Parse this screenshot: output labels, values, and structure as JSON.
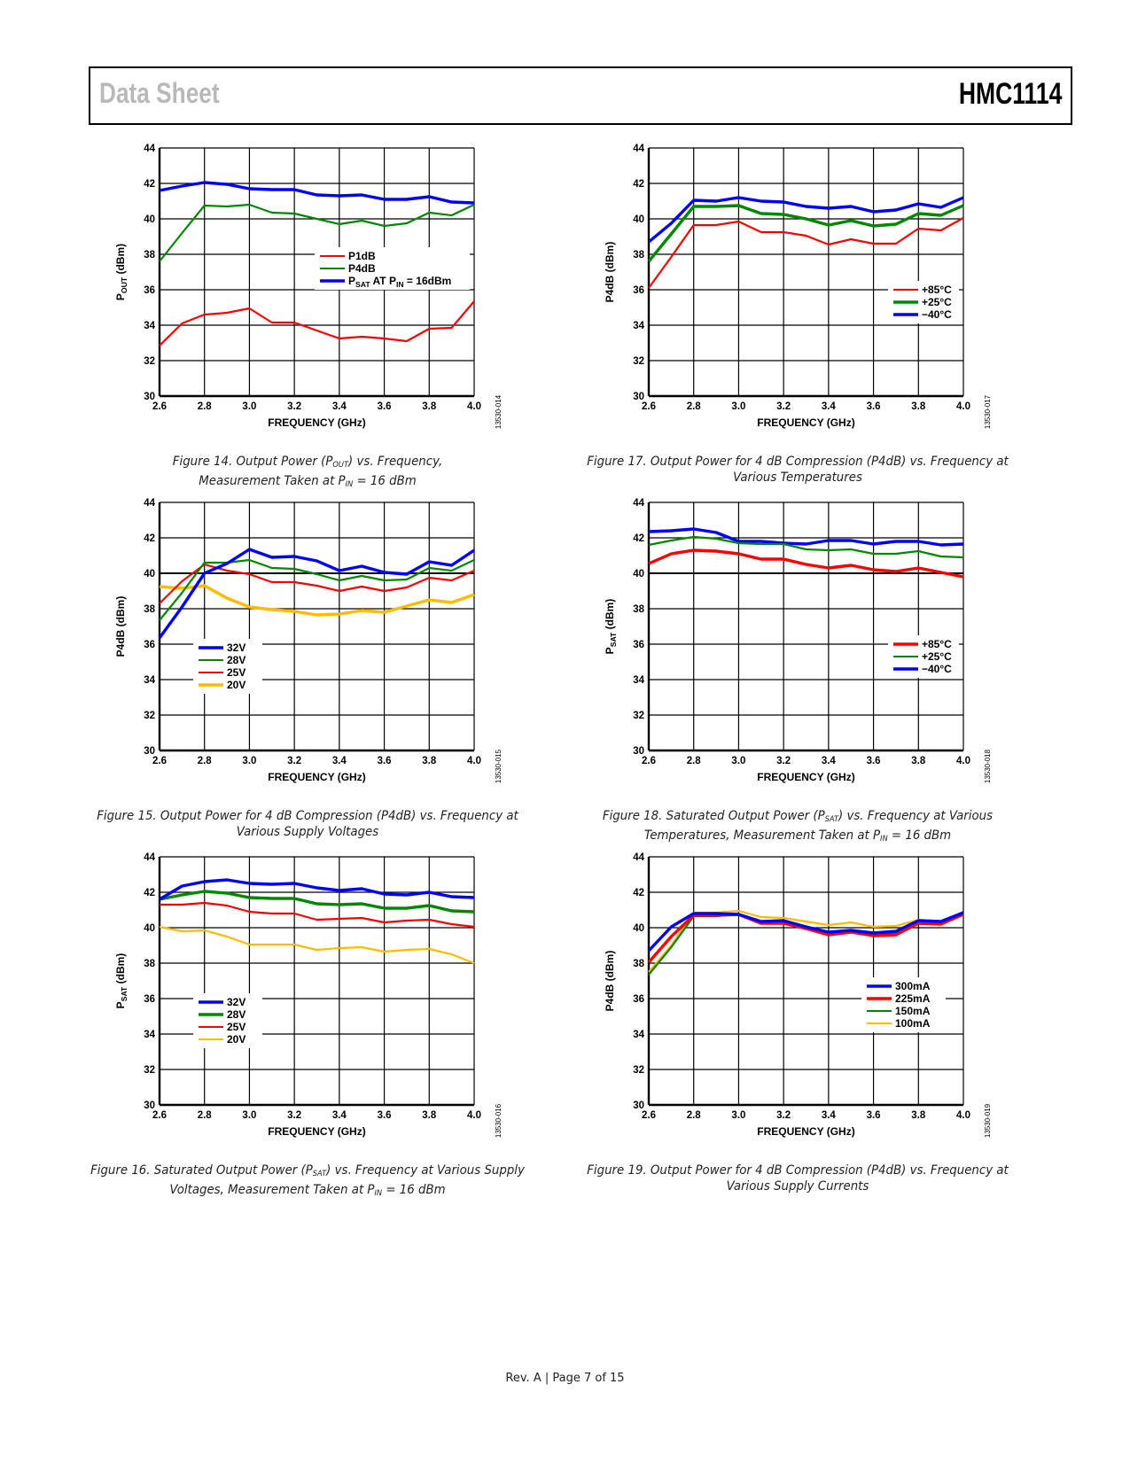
{
  "header": {
    "left": "Data Sheet",
    "right": "HMC1114"
  },
  "footer": "Rev. A | Page 7 of 15",
  "colors": {
    "red": "#ff0000",
    "green": "#008800",
    "blue": "#0000ff",
    "yellow": "#ffbb00"
  },
  "chart_data": [
    {
      "id": "fig14",
      "type": "line",
      "title": "",
      "caption_lines": [
        "Figure 14. Output Power (P{OUT}) vs. Frequency,",
        "Measurement Taken at P{IN} = 16 dBm"
      ],
      "figure_id": "13530-014",
      "xlabel": "FREQUENCY (GHz)",
      "ylabel": "P{OUT} (dBm)",
      "xlim": [
        2.6,
        4.0
      ],
      "ylim": [
        30,
        44
      ],
      "xticks": [
        "2.6",
        "2.8",
        "3.0",
        "3.2",
        "3.4",
        "3.6",
        "3.8",
        "4.0"
      ],
      "yticks": [
        "30",
        "32",
        "34",
        "36",
        "38",
        "40",
        "42",
        "44"
      ],
      "grid": true,
      "legend_position": "center-right",
      "x": [
        2.6,
        2.7,
        2.8,
        2.9,
        3.0,
        3.1,
        3.2,
        3.3,
        3.4,
        3.5,
        3.6,
        3.7,
        3.8,
        3.9,
        4.0
      ],
      "series": [
        {
          "name": "P1dB",
          "color": "red",
          "weight": "thin",
          "values": [
            32.85,
            34.1,
            34.6,
            34.7,
            34.95,
            34.15,
            34.15,
            33.7,
            33.25,
            33.35,
            33.25,
            33.1,
            33.8,
            33.85,
            35.35
          ]
        },
        {
          "name": "P4dB",
          "color": "green",
          "weight": "thin",
          "values": [
            37.6,
            39.2,
            40.75,
            40.7,
            40.8,
            40.35,
            40.3,
            40.0,
            39.7,
            39.9,
            39.6,
            39.75,
            40.35,
            40.2,
            40.8
          ]
        },
        {
          "name": "P{SAT} AT P{IN} = 16dBm",
          "color": "blue",
          "weight": "thick",
          "values": [
            41.6,
            41.85,
            42.05,
            41.95,
            41.7,
            41.65,
            41.65,
            41.35,
            41.3,
            41.35,
            41.1,
            41.1,
            41.25,
            40.95,
            40.9
          ]
        }
      ]
    },
    {
      "id": "fig17",
      "type": "line",
      "title": "",
      "caption_lines": [
        "Figure 17. Output Power for 4 dB Compression (P4dB) vs. Frequency at",
        "Various Temperatures"
      ],
      "figure_id": "13530-017",
      "xlabel": "FREQUENCY (GHz)",
      "ylabel": "P4dB (dBm)",
      "xlim": [
        2.6,
        4.0
      ],
      "ylim": [
        30,
        44
      ],
      "xticks": [
        "2.6",
        "2.8",
        "3.0",
        "3.2",
        "3.4",
        "3.6",
        "3.8",
        "4.0"
      ],
      "yticks": [
        "30",
        "32",
        "34",
        "36",
        "38",
        "40",
        "42",
        "44"
      ],
      "grid": true,
      "legend_position": "center-right",
      "x": [
        2.6,
        2.7,
        2.8,
        2.9,
        3.0,
        3.1,
        3.2,
        3.3,
        3.4,
        3.5,
        3.6,
        3.7,
        3.8,
        3.9,
        4.0
      ],
      "series": [
        {
          "name": "+85°C",
          "color": "red",
          "weight": "thin",
          "values": [
            36.1,
            37.85,
            39.65,
            39.65,
            39.85,
            39.25,
            39.25,
            39.05,
            38.55,
            38.85,
            38.6,
            38.6,
            39.45,
            39.35,
            40.05
          ]
        },
        {
          "name": "+25°C",
          "color": "green",
          "weight": "thick",
          "values": [
            37.6,
            39.15,
            40.7,
            40.7,
            40.75,
            40.3,
            40.25,
            40.0,
            39.65,
            39.9,
            39.6,
            39.7,
            40.3,
            40.2,
            40.75
          ]
        },
        {
          "name": "−40°C",
          "color": "blue",
          "weight": "thick",
          "values": [
            38.7,
            39.75,
            41.05,
            41.0,
            41.2,
            41.0,
            40.95,
            40.7,
            40.6,
            40.7,
            40.4,
            40.5,
            40.85,
            40.65,
            41.2
          ]
        }
      ]
    },
    {
      "id": "fig15",
      "type": "line",
      "title": "",
      "caption_lines": [
        "Figure 15. Output Power for 4 dB Compression (P4dB) vs. Frequency at",
        "Various Supply Voltages"
      ],
      "figure_id": "13530-015",
      "xlabel": "FREQUENCY (GHz)",
      "ylabel": "P4dB (dBm)",
      "xlim": [
        2.6,
        4.0
      ],
      "ylim": [
        30,
        44
      ],
      "xticks": [
        "2.6",
        "2.8",
        "3.0",
        "3.2",
        "3.4",
        "3.6",
        "3.8",
        "4.0"
      ],
      "yticks": [
        "30",
        "32",
        "34",
        "36",
        "38",
        "40",
        "42",
        "44"
      ],
      "grid": true,
      "legend_position": "lower-left",
      "x": [
        2.6,
        2.7,
        2.8,
        2.9,
        3.0,
        3.1,
        3.2,
        3.3,
        3.4,
        3.5,
        3.6,
        3.7,
        3.8,
        3.9,
        4.0
      ],
      "series": [
        {
          "name": "32V",
          "color": "blue",
          "weight": "thick",
          "values": [
            36.35,
            38.1,
            40.0,
            40.55,
            41.35,
            40.9,
            40.95,
            40.7,
            40.15,
            40.4,
            40.05,
            39.95,
            40.65,
            40.45,
            41.3
          ]
        },
        {
          "name": "28V",
          "color": "green",
          "weight": "thin",
          "values": [
            37.35,
            38.9,
            40.6,
            40.6,
            40.75,
            40.3,
            40.25,
            39.95,
            39.6,
            39.85,
            39.6,
            39.65,
            40.3,
            40.15,
            40.75
          ]
        },
        {
          "name": "25V",
          "color": "red",
          "weight": "thin",
          "values": [
            38.3,
            39.55,
            40.5,
            40.15,
            39.95,
            39.5,
            39.5,
            39.3,
            39.0,
            39.25,
            39.0,
            39.2,
            39.75,
            39.6,
            40.15
          ]
        },
        {
          "name": "20V",
          "color": "yellow",
          "weight": "thick",
          "values": [
            39.25,
            39.15,
            39.3,
            38.6,
            38.1,
            37.95,
            37.85,
            37.65,
            37.7,
            37.9,
            37.8,
            38.15,
            38.5,
            38.35,
            38.8
          ]
        }
      ]
    },
    {
      "id": "fig18",
      "type": "line",
      "title": "",
      "caption_lines": [
        "Figure 18. Saturated Output Power (P{SAT}) vs. Frequency at Various",
        "Temperatures, Measurement Taken at P{IN} = 16 dBm"
      ],
      "figure_id": "13530-018",
      "xlabel": "FREQUENCY (GHz)",
      "ylabel": "P{SAT} (dBm)",
      "xlim": [
        2.6,
        4.0
      ],
      "ylim": [
        30,
        44
      ],
      "xticks": [
        "2.6",
        "2.8",
        "3.0",
        "3.2",
        "3.4",
        "3.6",
        "3.8",
        "4.0"
      ],
      "yticks": [
        "30",
        "32",
        "34",
        "36",
        "38",
        "40",
        "42",
        "44"
      ],
      "grid": true,
      "legend_position": "center-right",
      "x": [
        2.6,
        2.7,
        2.8,
        2.9,
        3.0,
        3.1,
        3.2,
        3.3,
        3.4,
        3.5,
        3.6,
        3.7,
        3.8,
        3.9,
        4.0
      ],
      "series": [
        {
          "name": "+85°C",
          "color": "red",
          "weight": "thick",
          "values": [
            40.55,
            41.1,
            41.3,
            41.25,
            41.1,
            40.8,
            40.8,
            40.5,
            40.3,
            40.45,
            40.2,
            40.1,
            40.3,
            40.05,
            39.8
          ]
        },
        {
          "name": "+25°C",
          "color": "green",
          "weight": "thin",
          "values": [
            41.6,
            41.85,
            42.05,
            41.95,
            41.7,
            41.65,
            41.65,
            41.35,
            41.3,
            41.35,
            41.1,
            41.1,
            41.25,
            40.95,
            40.9
          ]
        },
        {
          "name": "−40°C",
          "color": "blue",
          "weight": "thick",
          "values": [
            42.35,
            42.4,
            42.5,
            42.3,
            41.8,
            41.8,
            41.7,
            41.65,
            41.85,
            41.85,
            41.65,
            41.8,
            41.8,
            41.6,
            41.65
          ]
        }
      ]
    },
    {
      "id": "fig16",
      "type": "line",
      "title": "",
      "caption_lines": [
        "Figure 16. Saturated Output Power (P{SAT}) vs. Frequency at Various Supply",
        "Voltages, Measurement Taken at P{IN} = 16 dBm"
      ],
      "figure_id": "13530-016",
      "xlabel": "FREQUENCY (GHz)",
      "ylabel": "P{SAT} (dBm)",
      "xlim": [
        2.6,
        4.0
      ],
      "ylim": [
        30,
        44
      ],
      "xticks": [
        "2.6",
        "2.8",
        "3.0",
        "3.2",
        "3.4",
        "3.6",
        "3.8",
        "4.0"
      ],
      "yticks": [
        "30",
        "32",
        "34",
        "36",
        "38",
        "40",
        "42",
        "44"
      ],
      "grid": true,
      "legend_position": "lower-left",
      "x": [
        2.6,
        2.7,
        2.8,
        2.9,
        3.0,
        3.1,
        3.2,
        3.3,
        3.4,
        3.5,
        3.6,
        3.7,
        3.8,
        3.9,
        4.0
      ],
      "series": [
        {
          "name": "32V",
          "color": "blue",
          "weight": "thick",
          "values": [
            41.6,
            42.35,
            42.6,
            42.7,
            42.5,
            42.45,
            42.5,
            42.25,
            42.1,
            42.2,
            41.9,
            41.85,
            42.0,
            41.75,
            41.7
          ]
        },
        {
          "name": "28V",
          "color": "green",
          "weight": "thick",
          "values": [
            41.6,
            41.85,
            42.05,
            41.95,
            41.7,
            41.65,
            41.65,
            41.35,
            41.3,
            41.35,
            41.1,
            41.1,
            41.25,
            40.95,
            40.9
          ]
        },
        {
          "name": "25V",
          "color": "red",
          "weight": "thin",
          "values": [
            41.3,
            41.3,
            41.4,
            41.25,
            40.9,
            40.8,
            40.8,
            40.45,
            40.5,
            40.55,
            40.3,
            40.4,
            40.45,
            40.2,
            40.05
          ]
        },
        {
          "name": "20V",
          "color": "yellow",
          "weight": "thin",
          "values": [
            40.05,
            39.8,
            39.85,
            39.5,
            39.05,
            39.05,
            39.05,
            38.75,
            38.85,
            38.9,
            38.65,
            38.75,
            38.8,
            38.5,
            38.0
          ]
        }
      ]
    },
    {
      "id": "fig19",
      "type": "line",
      "title": "",
      "caption_lines": [
        "Figure 19. Output Power for 4 dB Compression (P4dB) vs. Frequency at",
        "Various Supply Currents"
      ],
      "figure_id": "13530-019",
      "xlabel": "FREQUENCY (GHz)",
      "ylabel": "P4dB (dBm)",
      "xlim": [
        2.6,
        4.0
      ],
      "ylim": [
        30,
        44
      ],
      "xticks": [
        "2.6",
        "2.8",
        "3.0",
        "3.2",
        "3.4",
        "3.6",
        "3.8",
        "4.0"
      ],
      "yticks": [
        "30",
        "32",
        "34",
        "36",
        "38",
        "40",
        "42",
        "44"
      ],
      "grid": true,
      "legend_position": "center-right",
      "x": [
        2.6,
        2.7,
        2.8,
        2.9,
        3.0,
        3.1,
        3.2,
        3.3,
        3.4,
        3.5,
        3.6,
        3.7,
        3.8,
        3.9,
        4.0
      ],
      "series": [
        {
          "name": "300mA",
          "color": "blue",
          "weight": "thick",
          "values": [
            38.7,
            40.05,
            40.8,
            40.8,
            40.75,
            40.35,
            40.4,
            40.05,
            39.75,
            39.85,
            39.7,
            39.8,
            40.4,
            40.35,
            40.85
          ]
        },
        {
          "name": "225mA",
          "color": "red",
          "weight": "thick",
          "values": [
            38.05,
            39.5,
            40.7,
            40.7,
            40.75,
            40.25,
            40.25,
            39.95,
            39.6,
            39.75,
            39.55,
            39.6,
            40.25,
            40.2,
            40.75
          ]
        },
        {
          "name": "150mA",
          "color": "green",
          "weight": "thin",
          "values": [
            37.35,
            38.9,
            40.65,
            40.65,
            40.75,
            40.3,
            40.3,
            40.0,
            39.65,
            39.85,
            39.6,
            39.7,
            40.3,
            40.2,
            40.8
          ]
        },
        {
          "name": "100mA",
          "color": "yellow",
          "weight": "thin",
          "values": [
            37.5,
            39.0,
            40.85,
            40.85,
            40.95,
            40.6,
            40.55,
            40.35,
            40.15,
            40.3,
            40.05,
            40.1,
            40.45,
            40.35,
            40.85
          ]
        }
      ]
    }
  ]
}
